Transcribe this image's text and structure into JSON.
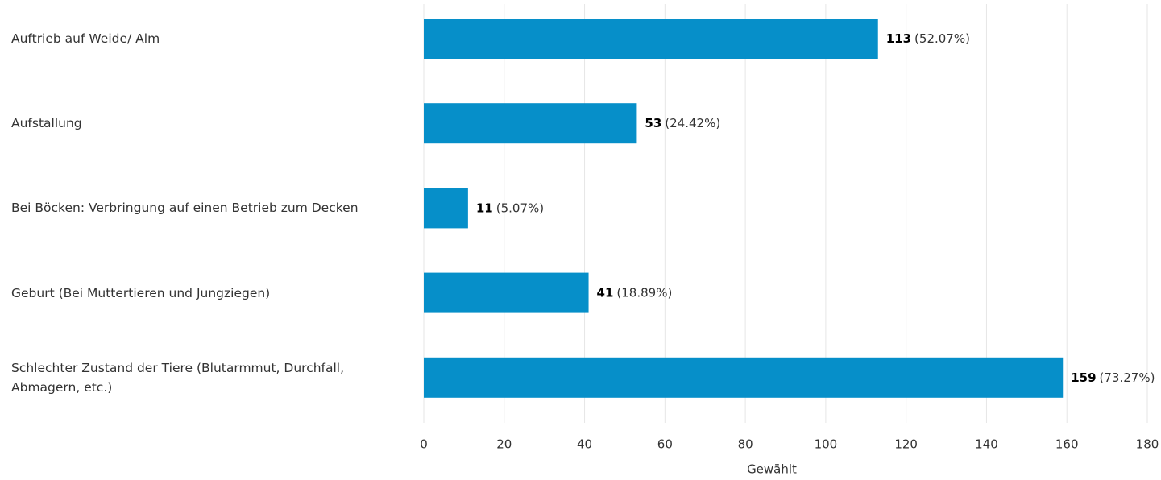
{
  "chart_data": {
    "type": "bar",
    "orientation": "horizontal",
    "categories": [
      "Auftrieb auf Weide/ Alm",
      "Aufstallung",
      "Bei Böcken: Verbringung auf einen Betrieb zum Decken",
      "Geburt (Bei Muttertieren und Jungziegen)",
      "Schlechter Zustand der Tiere (Blutarmmut, Durchfall, Abmagern, etc.)"
    ],
    "values": [
      113,
      53,
      11,
      41,
      159
    ],
    "percentages": [
      52.07,
      24.42,
      5.07,
      18.89,
      73.27
    ],
    "percentage_labels": [
      "(52.07%)",
      "(24.42%)",
      "(5.07%)",
      "(18.89%)",
      "(73.27%)"
    ],
    "color": "#068fc9",
    "xlabel": "Gewählt",
    "xlim": [
      0,
      180
    ],
    "xticks": [
      0,
      20,
      40,
      60,
      80,
      100,
      120,
      140,
      160,
      180
    ],
    "grid": true
  }
}
